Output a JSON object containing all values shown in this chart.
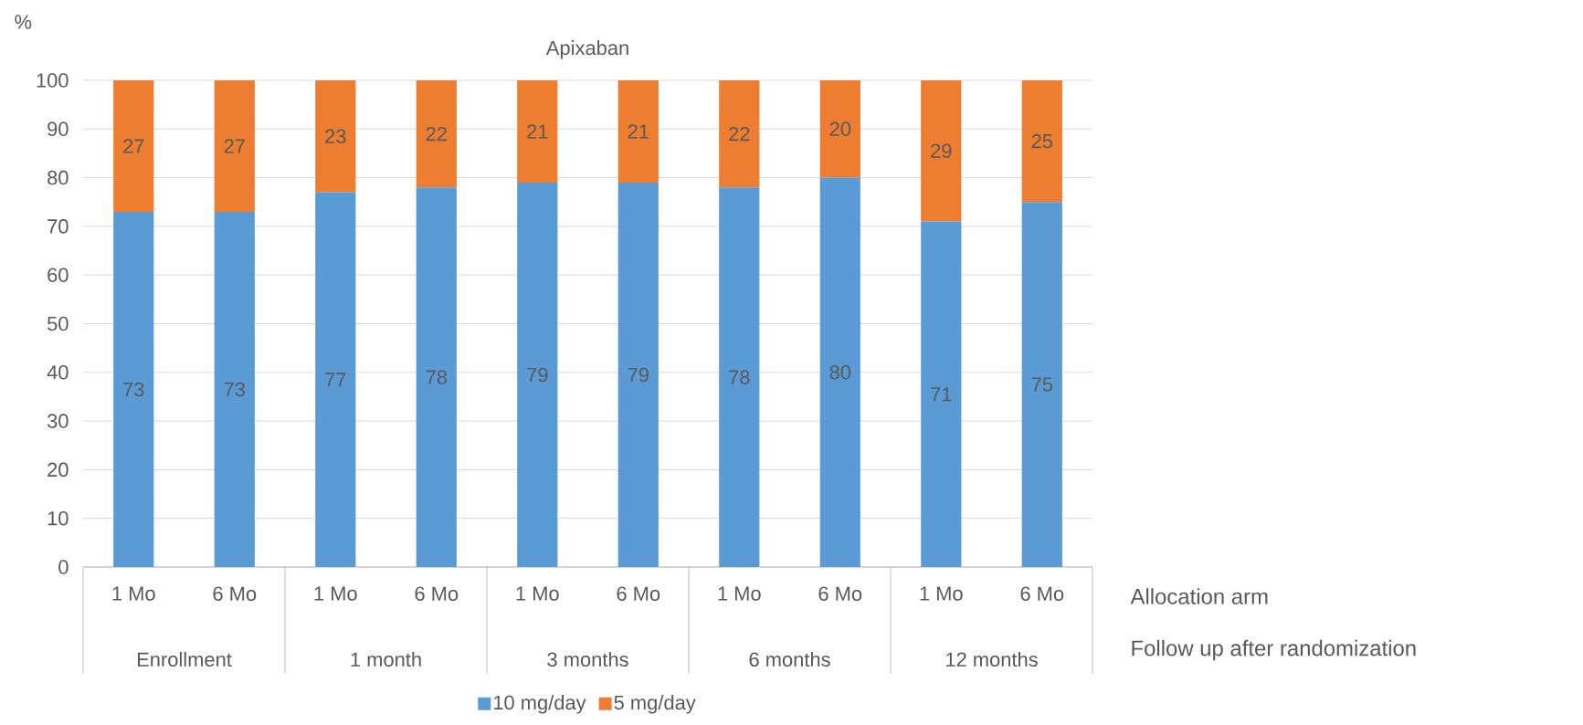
{
  "chart_data": {
    "type": "bar",
    "title": "Apixaban",
    "ylabel": "%",
    "stacked": true,
    "categories": [
      "1 Mo",
      "6 Mo",
      "1 Mo",
      "6 Mo",
      "1 Mo",
      "6 Mo",
      "1 Mo",
      "6 Mo",
      "1 Mo",
      "6 Mo"
    ],
    "series": [
      {
        "name": "10 mg/day",
        "color": "#5b9bd5",
        "values": [
          73,
          73,
          77,
          78,
          79,
          79,
          78,
          80,
          71,
          75
        ]
      },
      {
        "name": "5 mg/day",
        "color": "#ed7d31",
        "values": [
          27,
          27,
          23,
          22,
          21,
          21,
          22,
          20,
          29,
          25
        ]
      }
    ],
    "ylim": [
      0,
      100
    ],
    "yticks": [
      0,
      10,
      20,
      30,
      40,
      50,
      60,
      70,
      80,
      90,
      100
    ],
    "grid": "y",
    "legend": "bottom",
    "data_labels": true,
    "annotations": [
      "Enrollment",
      "1 month",
      "3 months",
      "6 months",
      "12 months",
      "Allocation arm",
      "Follow up after randomization"
    ]
  }
}
